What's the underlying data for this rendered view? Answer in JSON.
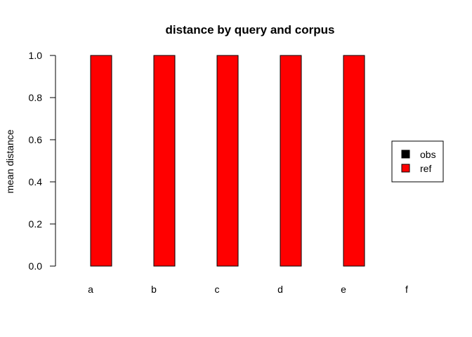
{
  "chart_data": {
    "type": "bar",
    "title": "distance by query and corpus",
    "xlabel": "",
    "ylabel": "mean distance",
    "categories": [
      "a",
      "b",
      "c",
      "d",
      "e",
      "f"
    ],
    "series": [
      {
        "name": "obs",
        "color": "#000000",
        "values": [
          0,
          0,
          0,
          0,
          0,
          0
        ]
      },
      {
        "name": "ref",
        "color": "#ff0000",
        "values": [
          1,
          1,
          1,
          1,
          1,
          0
        ]
      }
    ],
    "ylim": [
      0,
      1
    ],
    "yticks": [
      "0.0",
      "0.2",
      "0.4",
      "0.6",
      "0.8",
      "1.0"
    ],
    "grid": false,
    "legend_position": "right"
  }
}
